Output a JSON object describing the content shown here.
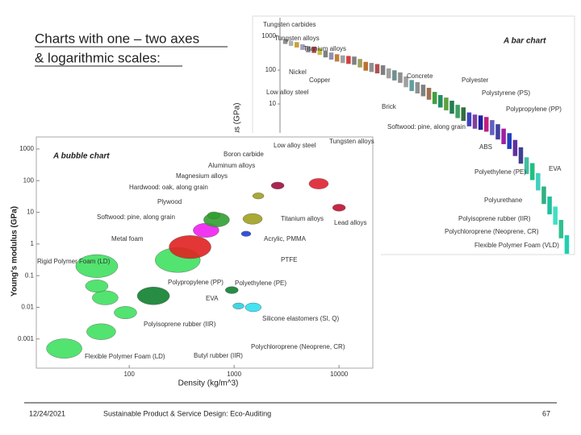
{
  "title": [
    "Charts with one – two axes",
    "& logarithmic scales:"
  ],
  "footer": {
    "date": "12/24/2021",
    "course": "Sustainable Product & Service Design: Eco-Auditing",
    "page": "67"
  },
  "chart_data": [
    {
      "type": "bar",
      "title": "A bar chart",
      "ylabel": "Young's modulus (GPa)",
      "log_y": true,
      "ylim": [
        0.0003,
        3000
      ],
      "yticks": [
        1000,
        100,
        10
      ],
      "values": [
        700,
        620,
        560,
        480,
        410,
        400,
        350,
        300,
        260,
        230,
        210,
        200,
        190,
        160,
        130,
        120,
        110,
        100,
        80,
        70,
        60,
        45,
        35,
        30,
        25,
        20,
        15,
        12,
        10,
        8,
        6,
        5,
        3.5,
        3,
        2.8,
        2.5,
        2,
        1.5,
        1.1,
        0.8,
        0.5,
        0.3,
        0.15,
        0.1,
        0.05,
        0.02,
        0.01,
        0.005,
        0.002,
        0.0007
      ],
      "colors": [
        "#909090",
        "#b0b0b0",
        "#c8a040",
        "#a0a0c0",
        "#909090",
        "#b04040",
        "#c0c040",
        "#808080",
        "#9090b0",
        "#c08040",
        "#a0a0a0",
        "#d04040",
        "#808080",
        "#a0a060",
        "#c07030",
        "#909090",
        "#b05050",
        "#808080",
        "#a0a0a0",
        "#709090",
        "#909090",
        "#a0a0a0",
        "#60a0a0",
        "#909090",
        "#808080",
        "#a07050",
        "#40a040",
        "#209060",
        "#60a040",
        "#208050",
        "#40a060",
        "#307040",
        "#4040c0",
        "#8040a0",
        "#2020a0",
        "#c02080",
        "#6060c0",
        "#4040a0",
        "#a020a0",
        "#2040c0",
        "#6030a0",
        "#404090",
        "#40c0a0",
        "#20c080",
        "#40d0c0",
        "#30b080",
        "#20c0a0",
        "#40e0c0",
        "#30c090",
        "#20d0b0"
      ],
      "annotations": [
        "Tungsten carbides",
        "Tungsten alloys",
        "Titanium alloys",
        "Nickel",
        "Copper",
        "Low alloy steel",
        "Concrete",
        "Polyester",
        "Brick",
        "Polystyrene (PS)",
        "Polypropylene (PP)",
        "Softwood: pine, along grain",
        "ABS",
        "Polyethylene (PE)",
        "EVA",
        "Polyurethane",
        "Polyisoprene rubber (IIR)",
        "Polychloroprene (Neoprene, CR)",
        "Flexible Polymer Foam (VLD)"
      ]
    },
    {
      "type": "bubble",
      "title": "A bubble chart",
      "xlabel": "Density (kg/m^3)",
      "ylabel": "Young's modulus (GPa)",
      "log_x": true,
      "log_y": true,
      "xlim": [
        13,
        21000
      ],
      "ylim": [
        0.00012,
        2400
      ],
      "xticks": [
        100,
        1000,
        10000
      ],
      "yticks": [
        1000,
        100,
        10,
        1,
        0.1,
        0.01,
        0.001
      ],
      "x": [
        24,
        54,
        92,
        59,
        49,
        170,
        49,
        290,
        380,
        540,
        680,
        640,
        1500,
        950,
        1520,
        1100,
        1300,
        6400,
        10000,
        2600,
        1700
      ],
      "values": [
        0.0005,
        0.0017,
        0.0068,
        0.02,
        0.047,
        0.023,
        0.2,
        0.31,
        0.8,
        2.7,
        5.8,
        8,
        6.2,
        0.035,
        0.01,
        0.011,
        2.1,
        80,
        14,
        70,
        33
      ],
      "sizes": [
        22,
        18,
        14,
        16,
        14,
        20,
        26,
        28,
        26,
        16,
        16,
        8,
        12,
        8,
        10,
        7,
        6,
        12,
        8,
        8,
        7
      ],
      "colors": [
        "#40e060",
        "#40e060",
        "#40e060",
        "#40e060",
        "#40e060",
        "#108030",
        "#40e060",
        "#40e060",
        "#e02020",
        "#f020f0",
        "#30a030",
        "#30a030",
        "#a0a020",
        "#108030",
        "#30e0f0",
        "#30d0e0",
        "#2040d0",
        "#e02030",
        "#c01030",
        "#a01040",
        "#a0a020"
      ],
      "annotations": [
        "Boron carbide",
        "Low alloy steel",
        "Tungsten alloys",
        "Aluminum alloys",
        "Magnesium alloys",
        "Hardwood: oak, along grain",
        "Plywood",
        "Softwood: pine, along grain",
        "Titanium alloys",
        "Lead alloys",
        "Metal foam",
        "Acrylic, PMMA",
        "PTFE",
        "Rigid Polymer Foam (LD)",
        "Polypropylene (PP)",
        "Polyethylene (PE)",
        "EVA",
        "Silicone elastomers (SI, Q)",
        "Polyisoprene rubber (IIR)",
        "Polychloroprene (Neoprene, CR)",
        "Flexible Polymer Foam (LD)",
        "Butyl rubber (IIR)"
      ]
    }
  ]
}
